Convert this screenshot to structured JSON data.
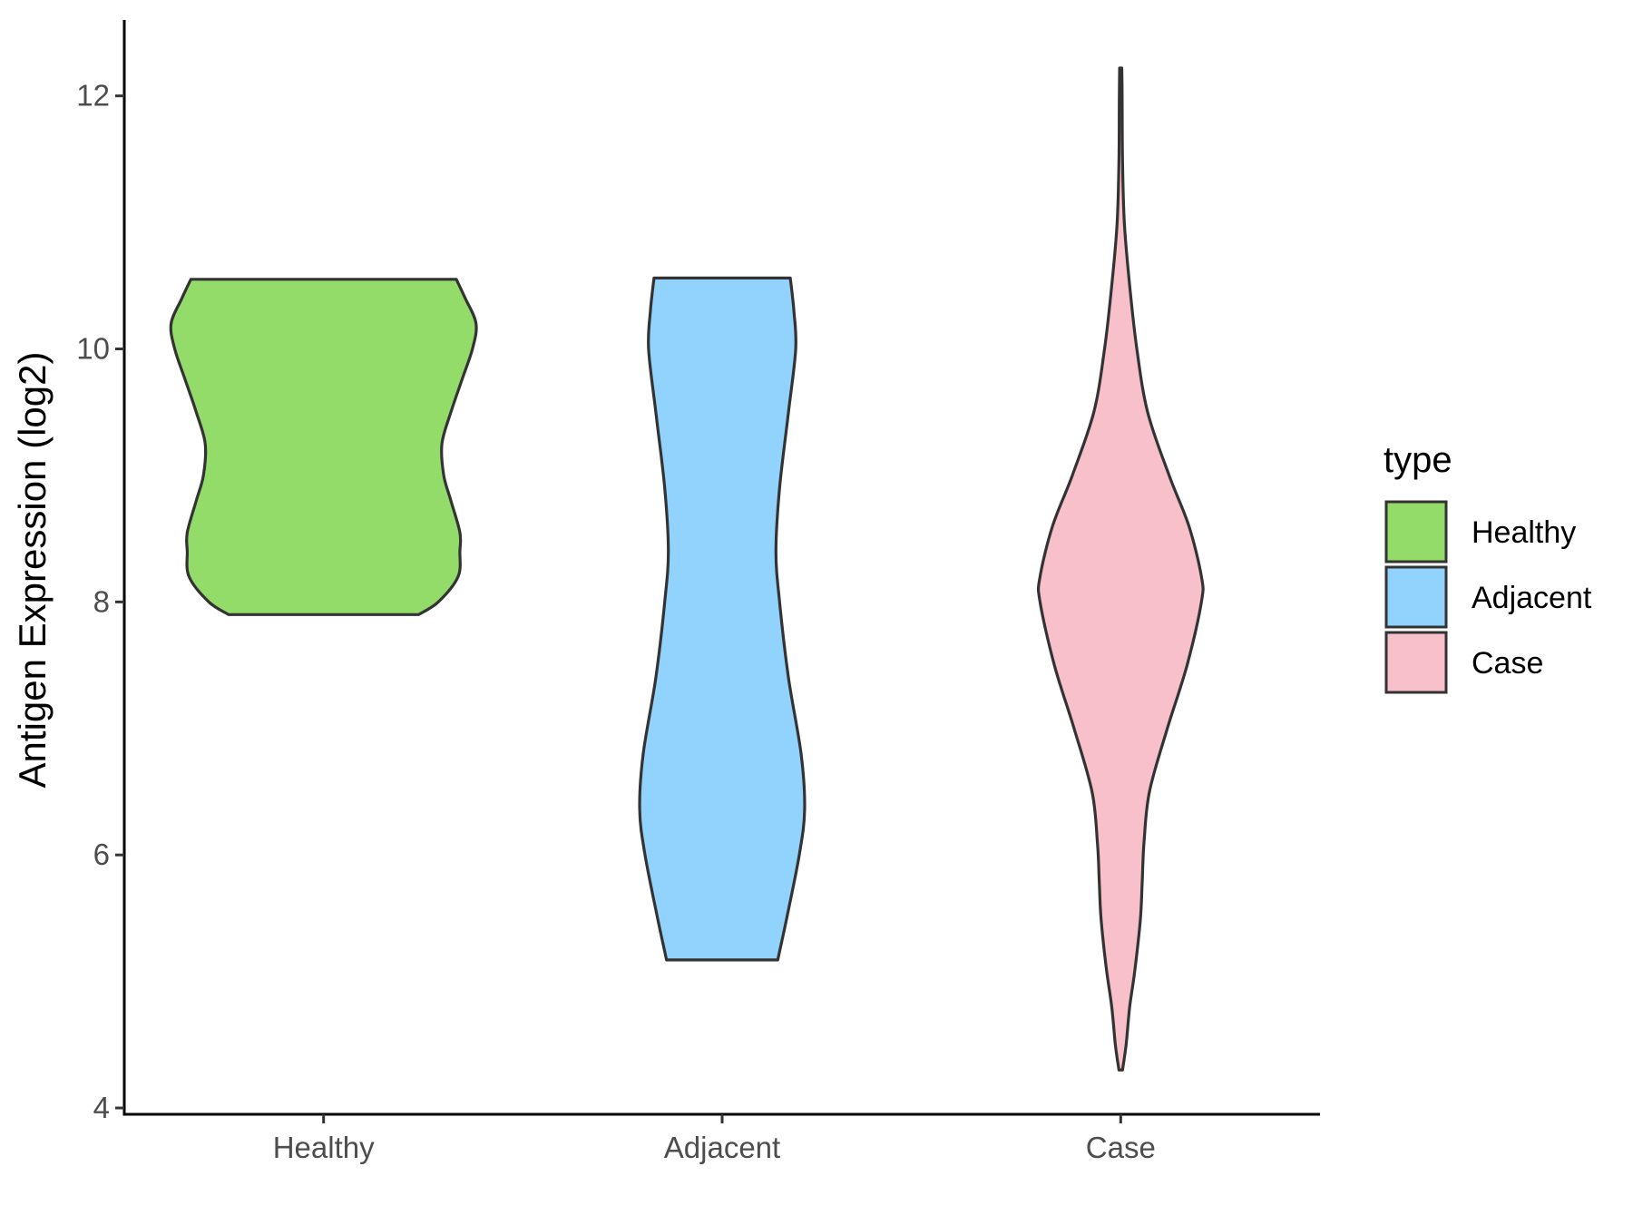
{
  "chart_data": {
    "type": "violin",
    "ylabel": "Antigen Expression (log2)",
    "xlabel": "",
    "ylim": [
      3.95,
      12.6
    ],
    "yticks": [
      4,
      6,
      8,
      10,
      12
    ],
    "categories": [
      "Healthy",
      "Adjacent",
      "Case"
    ],
    "grid": false,
    "legend": {
      "title": "type",
      "placement": "right",
      "items": [
        {
          "label": "Healthy",
          "color": "#93DC6A"
        },
        {
          "label": "Adjacent",
          "color": "#92D3FD"
        },
        {
          "label": "Case",
          "color": "#F7C0CB"
        }
      ]
    },
    "series": [
      {
        "name": "Healthy",
        "color": "#93DC6A",
        "min": 7.9,
        "max": 10.55,
        "density": [
          [
            7.9,
            0.53
          ],
          [
            8.0,
            0.64
          ],
          [
            8.2,
            0.75
          ],
          [
            8.4,
            0.76
          ],
          [
            8.55,
            0.76
          ],
          [
            8.8,
            0.71
          ],
          [
            9.0,
            0.67
          ],
          [
            9.25,
            0.66
          ],
          [
            9.5,
            0.71
          ],
          [
            9.75,
            0.77
          ],
          [
            10.0,
            0.83
          ],
          [
            10.2,
            0.85
          ],
          [
            10.4,
            0.79
          ],
          [
            10.55,
            0.74
          ]
        ]
      },
      {
        "name": "Adjacent",
        "color": "#92D3FD",
        "min": 5.17,
        "max": 10.56,
        "density": [
          [
            5.17,
            0.31
          ],
          [
            5.5,
            0.36
          ],
          [
            6.0,
            0.43
          ],
          [
            6.36,
            0.46
          ],
          [
            6.8,
            0.44
          ],
          [
            7.4,
            0.37
          ],
          [
            8.0,
            0.32
          ],
          [
            8.4,
            0.3
          ],
          [
            8.9,
            0.32
          ],
          [
            9.5,
            0.37
          ],
          [
            10.0,
            0.41
          ],
          [
            10.3,
            0.4
          ],
          [
            10.56,
            0.38
          ]
        ]
      },
      {
        "name": "Case",
        "color": "#F7C0CB",
        "min": 4.3,
        "max": 12.22,
        "density": [
          [
            4.3,
            0.01
          ],
          [
            4.5,
            0.03
          ],
          [
            4.8,
            0.05
          ],
          [
            5.1,
            0.08
          ],
          [
            5.5,
            0.11
          ],
          [
            5.8,
            0.12
          ],
          [
            6.1,
            0.13
          ],
          [
            6.5,
            0.16
          ],
          [
            7.0,
            0.26
          ],
          [
            7.5,
            0.37
          ],
          [
            8.0,
            0.45
          ],
          [
            8.2,
            0.45
          ],
          [
            8.6,
            0.38
          ],
          [
            9.0,
            0.27
          ],
          [
            9.5,
            0.15
          ],
          [
            10.0,
            0.09
          ],
          [
            10.5,
            0.05
          ],
          [
            11.0,
            0.02
          ],
          [
            11.5,
            0.01
          ],
          [
            12.0,
            0.008
          ],
          [
            12.22,
            0.006
          ]
        ]
      }
    ]
  }
}
